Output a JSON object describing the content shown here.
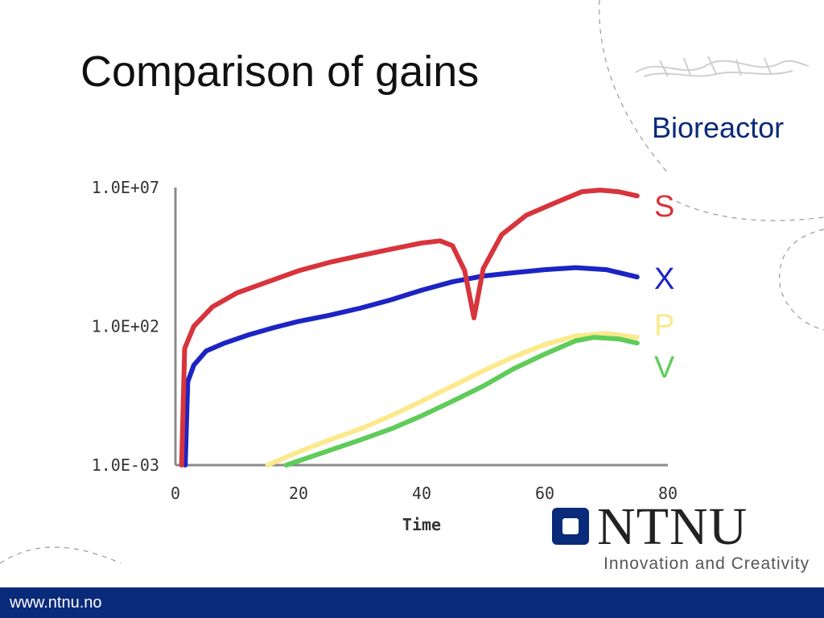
{
  "slide": {
    "title": "Comparison of gains",
    "subtitle": "Bioreactor",
    "footer_url": "www.ntnu.no",
    "logo": {
      "name": "NTNU",
      "tagline": "Innovation and Creativity",
      "color": "#0a2a7a"
    }
  },
  "chart_data": {
    "type": "line",
    "xlabel": "Time",
    "ylabel": "",
    "xlim": [
      0,
      80
    ],
    "ylim": [
      0.001,
      10000000
    ],
    "yscale": "log",
    "x_ticks": [
      0,
      20,
      40,
      60,
      80
    ],
    "x_tick_labels": [
      "0",
      "20",
      "40",
      "60",
      "80"
    ],
    "y_ticks": [
      0.001,
      100,
      10000000
    ],
    "y_tick_labels": [
      "1.0E-03",
      "1.0E+02",
      "1.0E+07"
    ],
    "grid": false,
    "legend_position": "right",
    "series": [
      {
        "name": "S",
        "color": "#d8343c",
        "points": [
          [
            1,
            0.001
          ],
          [
            1.5,
            16
          ],
          [
            3,
            100
          ],
          [
            6,
            500
          ],
          [
            10,
            1600
          ],
          [
            15,
            4000
          ],
          [
            20,
            10000
          ],
          [
            25,
            20000
          ],
          [
            30,
            35000
          ],
          [
            35,
            60000
          ],
          [
            40,
            100000
          ],
          [
            43,
            120000
          ],
          [
            45,
            80000
          ],
          [
            47,
            10000
          ],
          [
            48.5,
            200
          ],
          [
            50,
            12000
          ],
          [
            53,
            200000
          ],
          [
            57,
            1000000
          ],
          [
            62,
            3000000
          ],
          [
            66,
            7000000
          ],
          [
            69,
            8000000
          ],
          [
            72,
            7000000
          ],
          [
            75,
            5000000
          ]
        ]
      },
      {
        "name": "X",
        "color": "#1c24c4",
        "points": [
          [
            1.6,
            0.001
          ],
          [
            2,
            1
          ],
          [
            3,
            4
          ],
          [
            5,
            13
          ],
          [
            8,
            25
          ],
          [
            12,
            50
          ],
          [
            16,
            90
          ],
          [
            20,
            150
          ],
          [
            25,
            250
          ],
          [
            30,
            450
          ],
          [
            35,
            900
          ],
          [
            40,
            2000
          ],
          [
            45,
            4000
          ],
          [
            50,
            6500
          ],
          [
            55,
            8500
          ],
          [
            60,
            11000
          ],
          [
            65,
            13000
          ],
          [
            70,
            11000
          ],
          [
            75,
            6000
          ]
        ]
      },
      {
        "name": "P",
        "color": "#fce98c",
        "points": [
          [
            15,
            0.001
          ],
          [
            20,
            0.003
          ],
          [
            25,
            0.008
          ],
          [
            30,
            0.02
          ],
          [
            35,
            0.06
          ],
          [
            40,
            0.2
          ],
          [
            45,
            0.7
          ],
          [
            50,
            2.5
          ],
          [
            55,
            8
          ],
          [
            60,
            22
          ],
          [
            65,
            45
          ],
          [
            70,
            55
          ],
          [
            75,
            40
          ]
        ]
      },
      {
        "name": "V",
        "color": "#5fcc5a",
        "points": [
          [
            18,
            0.001
          ],
          [
            22,
            0.002
          ],
          [
            26,
            0.004
          ],
          [
            30,
            0.008
          ],
          [
            35,
            0.02
          ],
          [
            40,
            0.06
          ],
          [
            45,
            0.2
          ],
          [
            50,
            0.7
          ],
          [
            55,
            3
          ],
          [
            60,
            10
          ],
          [
            65,
            30
          ],
          [
            68,
            40
          ],
          [
            72,
            35
          ],
          [
            75,
            25
          ]
        ]
      }
    ]
  },
  "legend_colors": {
    "S": "#d8343c",
    "X": "#1c24c4",
    "P": "#fce98c",
    "V": "#5fcc5a"
  }
}
